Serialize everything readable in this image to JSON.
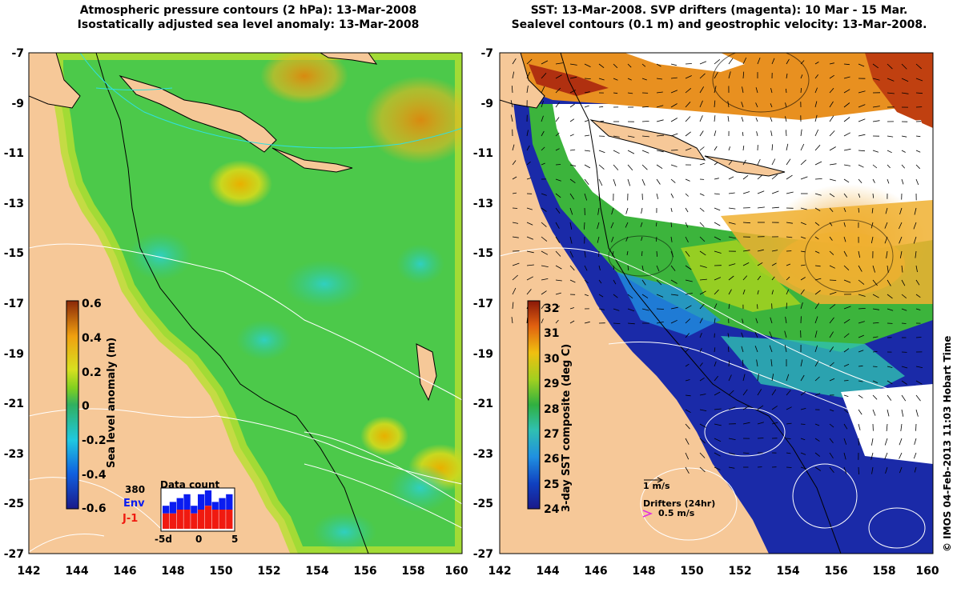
{
  "left_panel": {
    "title_line1": "Atmospheric pressure contours (2 hPa): 13-Mar-2008",
    "title_line2": "Isostatically adjusted sea level anomaly: 13-Mar-2008",
    "colorbar_label": "Sea level anomaly (m)",
    "colorbar_ticks": [
      "0.6",
      "0.4",
      "0.2",
      "0",
      "-0.2",
      "-0.4",
      "-0.6"
    ],
    "inset": {
      "title": "Data count",
      "count": "380",
      "series1": "Env",
      "series2": "J-1",
      "xticks": [
        "-5d",
        "0",
        "5"
      ],
      "env_counts": [
        6,
        7,
        8,
        9,
        6,
        9,
        10,
        7,
        8,
        9
      ],
      "j1_counts": [
        4,
        4,
        5,
        5,
        4,
        5,
        6,
        5,
        5,
        5
      ],
      "colors": {
        "env": "#0a1cf0",
        "j1": "#f01a10"
      }
    }
  },
  "right_panel": {
    "title_line1": "SST: 13-Mar-2008. SVP drifters (magenta): 10 Mar - 15 Mar.",
    "title_line2": "Sealevel contours (0.1 m) and geostrophic velocity: 13-Mar-2008.",
    "colorbar_label": "3-day SST composite (deg C)",
    "colorbar_ticks": [
      "32",
      "31",
      "30",
      "29",
      "28",
      "27",
      "26",
      "25",
      "24"
    ],
    "vector_scale_label": "1 m/s",
    "drifters_label": "Drifters (24hr)",
    "drifter_speed_label": "0.5 m/s"
  },
  "axes": {
    "lat_ticks": [
      "-7",
      "-9",
      "-11",
      "-13",
      "-15",
      "-17",
      "-19",
      "-21",
      "-23",
      "-25",
      "-27"
    ],
    "lon_ticks": [
      "142",
      "144",
      "146",
      "148",
      "150",
      "152",
      "154",
      "156",
      "158",
      "160"
    ]
  },
  "credit": "© IMOS 04-Feb-2013 11:03 Hobart Time",
  "colors": {
    "land": "#f6c898",
    "sla_mid": "#4dc94d",
    "sst_warm": "#f0a020",
    "sst_cool": "#1a2aa8"
  }
}
